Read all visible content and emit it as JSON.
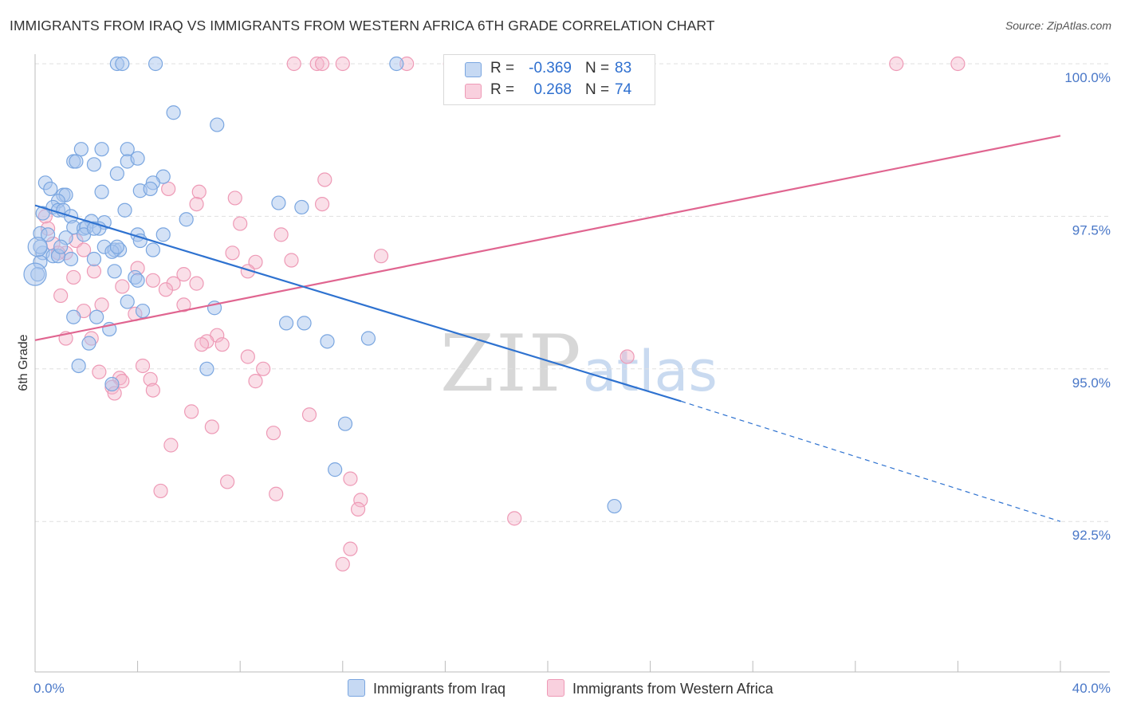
{
  "title": "IMMIGRANTS FROM IRAQ VS IMMIGRANTS FROM WESTERN AFRICA 6TH GRADE CORRELATION CHART",
  "source": "Source: ZipAtlas.com",
  "watermark": {
    "zip": "ZIP",
    "atlas": "atlas"
  },
  "legend": {
    "rows": [
      {
        "r_label": "R =",
        "r_value": "-0.369",
        "n_label": "N =",
        "n_value": "83",
        "color": "#a9c6ee"
      },
      {
        "r_label": "R =",
        "r_value": "0.268",
        "n_label": "N =",
        "n_value": "74",
        "color": "#f5b8cc"
      }
    ]
  },
  "bottom_legend": {
    "iraq": "Immigrants from Iraq",
    "wafrica": "Immigrants from Western Africa"
  },
  "colors": {
    "iraq_fill": "#a9c6ee",
    "iraq_stroke": "#7aa6e0",
    "iraq_line": "#2e72d0",
    "wafrica_fill": "#f5b8cc",
    "wafrica_stroke": "#ee9ab6",
    "wafrica_line": "#e06590",
    "grid": "#e0e0e0",
    "axis": "#bbbbbb"
  },
  "chart_data": {
    "type": "scatter",
    "title": "IMMIGRANTS FROM IRAQ VS IMMIGRANTS FROM WESTERN AFRICA 6TH GRADE CORRELATION CHART",
    "xlabel": "",
    "ylabel": "6th Grade",
    "xlim": [
      0,
      40
    ],
    "ylim": [
      90.1,
      100.5
    ],
    "x_tick_labels": [
      {
        "value": 0,
        "label": "0.0%"
      },
      {
        "value": 40,
        "label": "40.0%"
      }
    ],
    "y_tick_labels": [
      {
        "value": 100,
        "label": "100.0%"
      },
      {
        "value": 97.5,
        "label": "97.5%"
      },
      {
        "value": 95,
        "label": "95.0%"
      },
      {
        "value": 92.5,
        "label": "92.5%"
      }
    ],
    "x_minor_ticks": [
      4,
      8,
      12,
      16,
      20,
      24,
      28,
      32,
      36
    ],
    "series": [
      {
        "name": "Immigrants from Iraq",
        "R": -0.369,
        "N": 83,
        "trend": {
          "x_start": 0,
          "y_start": 97.68,
          "x_solid_end": 25.2,
          "y_solid_end": 94.47,
          "x_end": 40,
          "y_end": 92.5
        },
        "points": [
          [
            3.2,
            100.0
          ],
          [
            3.4,
            100.0
          ],
          [
            4.7,
            100.0
          ],
          [
            14.1,
            100.0
          ],
          [
            5.4,
            99.2
          ],
          [
            7.1,
            99.0
          ],
          [
            1.8,
            98.6
          ],
          [
            2.6,
            98.6
          ],
          [
            3.6,
            98.6
          ],
          [
            1.5,
            98.4
          ],
          [
            1.6,
            98.4
          ],
          [
            2.3,
            98.35
          ],
          [
            3.6,
            98.4
          ],
          [
            4.0,
            98.45
          ],
          [
            3.2,
            98.2
          ],
          [
            5.0,
            98.15
          ],
          [
            0.4,
            98.05
          ],
          [
            4.6,
            98.05
          ],
          [
            0.6,
            97.95
          ],
          [
            1.1,
            97.85
          ],
          [
            1.2,
            97.85
          ],
          [
            2.6,
            97.9
          ],
          [
            4.1,
            97.92
          ],
          [
            4.5,
            97.95
          ],
          [
            0.9,
            97.75
          ],
          [
            9.5,
            97.72
          ],
          [
            10.4,
            97.65
          ],
          [
            0.7,
            97.65
          ],
          [
            0.9,
            97.6
          ],
          [
            1.1,
            97.6
          ],
          [
            3.5,
            97.6
          ],
          [
            0.3,
            97.55
          ],
          [
            1.4,
            97.5
          ],
          [
            5.9,
            97.45
          ],
          [
            2.2,
            97.42
          ],
          [
            2.7,
            97.4
          ],
          [
            1.5,
            97.32
          ],
          [
            1.9,
            97.3
          ],
          [
            2.0,
            97.32
          ],
          [
            2.5,
            97.3
          ],
          [
            4.0,
            97.2
          ],
          [
            5.0,
            97.2
          ],
          [
            0.2,
            97.22
          ],
          [
            1.2,
            97.15
          ],
          [
            1.9,
            97.2
          ],
          [
            4.1,
            97.1
          ],
          [
            2.7,
            97.0
          ],
          [
            3.1,
            96.95
          ],
          [
            3.3,
            96.95
          ],
          [
            4.6,
            96.95
          ],
          [
            0.3,
            96.9
          ],
          [
            0.7,
            96.85
          ],
          [
            0.9,
            96.85
          ],
          [
            1.4,
            96.8
          ],
          [
            2.3,
            96.8
          ],
          [
            3.0,
            96.92
          ],
          [
            0.2,
            96.75
          ],
          [
            3.1,
            96.6
          ],
          [
            3.9,
            96.5
          ],
          [
            4.0,
            96.45
          ],
          [
            0.1,
            96.55
          ],
          [
            3.6,
            96.1
          ],
          [
            7.0,
            96.0
          ],
          [
            4.2,
            95.95
          ],
          [
            1.5,
            95.85
          ],
          [
            2.4,
            95.85
          ],
          [
            2.9,
            95.65
          ],
          [
            9.8,
            95.75
          ],
          [
            10.5,
            95.75
          ],
          [
            2.1,
            95.42
          ],
          [
            11.4,
            95.45
          ],
          [
            13.0,
            95.5
          ],
          [
            1.7,
            95.05
          ],
          [
            6.7,
            95.0
          ],
          [
            3.0,
            94.75
          ],
          [
            12.1,
            94.1
          ],
          [
            11.7,
            93.35
          ],
          [
            22.6,
            92.75
          ],
          [
            1.0,
            97.0
          ],
          [
            2.3,
            97.3
          ],
          [
            0.5,
            97.2
          ],
          [
            0.2,
            97.0
          ],
          [
            3.2,
            97.0
          ]
        ]
      },
      {
        "name": "Immigrants from Western Africa",
        "R": 0.268,
        "N": 74,
        "trend": {
          "x_start": 0,
          "y_start": 95.47,
          "x_end": 40,
          "y_end": 98.82
        },
        "points": [
          [
            10.1,
            100.0
          ],
          [
            11.0,
            100.0
          ],
          [
            11.2,
            100.0
          ],
          [
            12.0,
            100.0
          ],
          [
            14.5,
            100.0
          ],
          [
            16.2,
            100.0
          ],
          [
            33.6,
            100.0
          ],
          [
            36.0,
            100.0
          ],
          [
            11.3,
            98.1
          ],
          [
            5.2,
            97.95
          ],
          [
            6.4,
            97.9
          ],
          [
            7.8,
            97.8
          ],
          [
            6.3,
            97.7
          ],
          [
            11.2,
            97.7
          ],
          [
            8.0,
            97.38
          ],
          [
            9.6,
            97.2
          ],
          [
            0.4,
            97.5
          ],
          [
            0.5,
            97.3
          ],
          [
            1.6,
            97.1
          ],
          [
            0.7,
            97.05
          ],
          [
            1.2,
            96.9
          ],
          [
            0.9,
            96.9
          ],
          [
            1.9,
            96.95
          ],
          [
            7.7,
            96.9
          ],
          [
            8.6,
            96.75
          ],
          [
            8.3,
            96.6
          ],
          [
            10.0,
            96.78
          ],
          [
            13.5,
            96.85
          ],
          [
            4.0,
            96.65
          ],
          [
            2.3,
            96.6
          ],
          [
            1.5,
            96.5
          ],
          [
            5.8,
            96.55
          ],
          [
            5.4,
            96.4
          ],
          [
            4.6,
            96.45
          ],
          [
            6.3,
            96.4
          ],
          [
            3.4,
            96.35
          ],
          [
            1.0,
            96.2
          ],
          [
            5.1,
            96.3
          ],
          [
            2.6,
            96.05
          ],
          [
            5.8,
            96.05
          ],
          [
            1.9,
            95.95
          ],
          [
            3.9,
            95.9
          ],
          [
            2.2,
            95.5
          ],
          [
            1.2,
            95.5
          ],
          [
            7.1,
            95.55
          ],
          [
            6.7,
            95.45
          ],
          [
            6.5,
            95.4
          ],
          [
            7.3,
            95.4
          ],
          [
            8.3,
            95.2
          ],
          [
            4.2,
            95.05
          ],
          [
            2.5,
            94.95
          ],
          [
            8.9,
            95.0
          ],
          [
            3.3,
            94.85
          ],
          [
            3.4,
            94.8
          ],
          [
            4.5,
            94.83
          ],
          [
            8.6,
            94.8
          ],
          [
            3.0,
            94.7
          ],
          [
            3.1,
            94.6
          ],
          [
            4.6,
            94.65
          ],
          [
            6.1,
            94.3
          ],
          [
            10.7,
            94.25
          ],
          [
            6.9,
            94.05
          ],
          [
            9.3,
            93.95
          ],
          [
            5.3,
            93.75
          ],
          [
            12.3,
            93.2
          ],
          [
            7.5,
            93.15
          ],
          [
            9.4,
            92.95
          ],
          [
            4.9,
            93.0
          ],
          [
            12.7,
            92.85
          ],
          [
            12.6,
            92.7
          ],
          [
            18.7,
            92.55
          ],
          [
            23.1,
            95.2
          ],
          [
            12.3,
            92.05
          ],
          [
            12.0,
            91.8
          ]
        ]
      }
    ]
  }
}
